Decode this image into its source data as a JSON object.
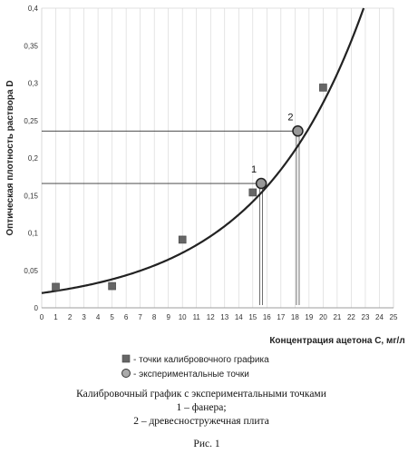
{
  "chart_data": {
    "type": "scatter",
    "xlabel": "Концентрация ацетона  C, мг/л",
    "ylabel": "Оптическая плотность раствора  D",
    "xlim": [
      0,
      25
    ],
    "ylim": [
      0,
      0.4
    ],
    "x_ticks": [
      "0",
      "1",
      "2",
      "3",
      "4",
      "5",
      "6",
      "7",
      "8",
      "9",
      "10",
      "11",
      "12",
      "13",
      "14",
      "15",
      "16",
      "17",
      "18",
      "19",
      "20",
      "21",
      "22",
      "23",
      "24",
      "25"
    ],
    "y_ticks": [
      "0",
      "0,05",
      "0,1",
      "0,15",
      "0,2",
      "0,25",
      "0,3",
      "0,35",
      "0,4"
    ],
    "grid": "vertical",
    "series": [
      {
        "name": "- точки калибровочного графика",
        "marker": "square",
        "color": "#666666",
        "points": [
          {
            "x": 1,
            "y": 0.028
          },
          {
            "x": 5,
            "y": 0.029
          },
          {
            "x": 10,
            "y": 0.091
          },
          {
            "x": 15,
            "y": 0.154
          },
          {
            "x": 20,
            "y": 0.294
          }
        ]
      },
      {
        "name": "- экспериментальные точки",
        "marker": "circle",
        "color": "#999999",
        "points": [
          {
            "x": 15.6,
            "y": 0.166,
            "label": "1"
          },
          {
            "x": 18.2,
            "y": 0.236,
            "label": "2"
          }
        ]
      }
    ],
    "trendline": {
      "type": "exponential",
      "a": 0.0197,
      "b": 0.1316,
      "color": "#222222"
    }
  },
  "caption": {
    "line1": "Калибровочный график с экспериментальными точками",
    "line2": "1 – фанера;",
    "line3": "2 – древесностружечная плита",
    "figure_label": "Рис. 1"
  }
}
